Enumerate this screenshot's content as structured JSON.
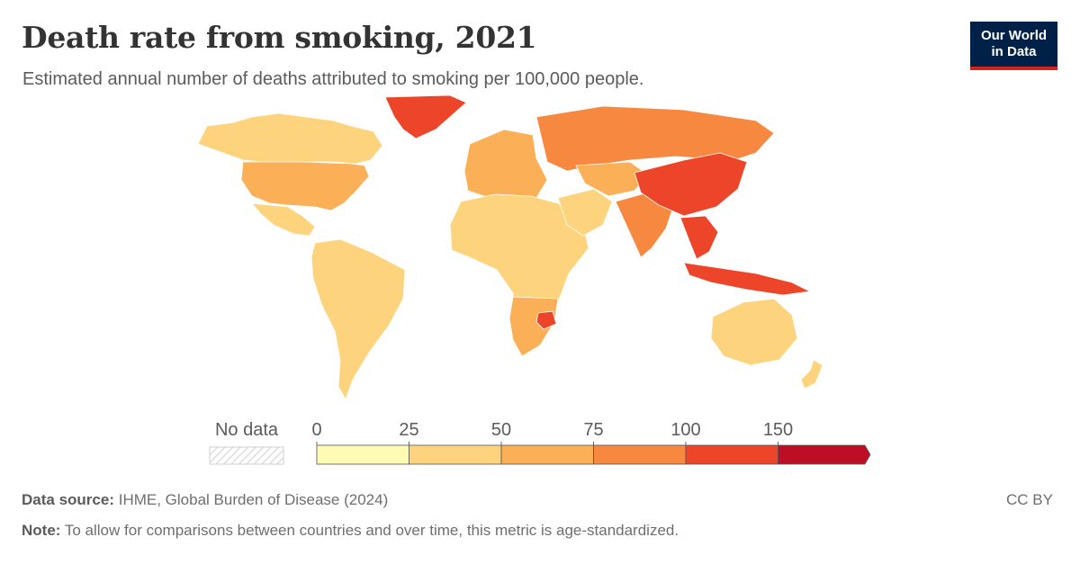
{
  "title": "Death rate from smoking, 2021",
  "subtitle": "Estimated annual number of deaths attributed to smoking per 100,000 people.",
  "logo": {
    "line1": "Our World",
    "line2": "in Data"
  },
  "legend": {
    "no_data_label": "No data",
    "ticks": [
      "0",
      "25",
      "50",
      "75",
      "100",
      "150"
    ],
    "bins": [
      {
        "from": 0,
        "to": 25,
        "color": "#fefbb5"
      },
      {
        "from": 25,
        "to": 50,
        "color": "#fdd47d"
      },
      {
        "from": 50,
        "to": 75,
        "color": "#fbaf56"
      },
      {
        "from": 75,
        "to": 100,
        "color": "#f6893f"
      },
      {
        "from": 100,
        "to": 150,
        "color": "#ec452a"
      },
      {
        "from": 150,
        "to": null,
        "color": "#bc0f26"
      }
    ]
  },
  "map_regions": [
    {
      "name": "Greenland",
      "bin": 4
    },
    {
      "name": "Canada",
      "bin": 1
    },
    {
      "name": "United States",
      "bin": 2
    },
    {
      "name": "Mexico",
      "bin": 1
    },
    {
      "name": "South America",
      "bin": 1
    },
    {
      "name": "Europe",
      "bin": 2
    },
    {
      "name": "Russia",
      "bin": 3
    },
    {
      "name": "Africa",
      "bin": 1
    },
    {
      "name": "Southern Africa",
      "bin": 2
    },
    {
      "name": "Zimbabwe",
      "bin": 4
    },
    {
      "name": "Middle East",
      "bin": 1
    },
    {
      "name": "Central Asia",
      "bin": 2
    },
    {
      "name": "India",
      "bin": 3
    },
    {
      "name": "China",
      "bin": 4
    },
    {
      "name": "Southeast Asia",
      "bin": 4
    },
    {
      "name": "Indonesia",
      "bin": 4
    },
    {
      "name": "Australia",
      "bin": 1
    },
    {
      "name": "New Zealand",
      "bin": 1
    }
  ],
  "footer": {
    "source_label": "Data source:",
    "source_text": "IHME, Global Burden of Disease (2024)",
    "note_label": "Note:",
    "note_text": "To allow for comparisons between countries and over time, this metric is age-standardized.",
    "license": "CC BY"
  }
}
